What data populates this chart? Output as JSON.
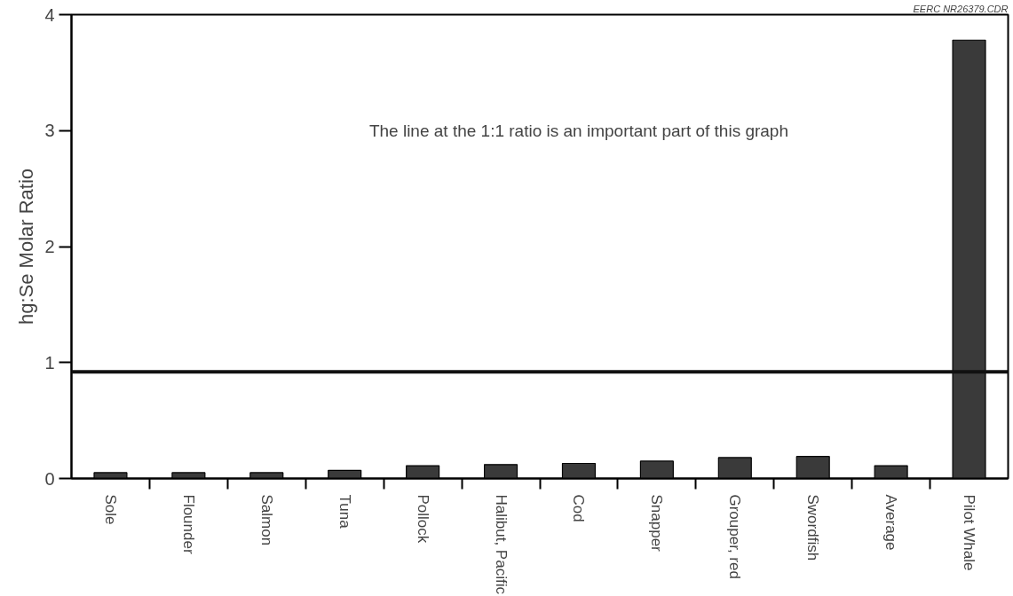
{
  "chart_data": {
    "type": "bar",
    "ylabel": "hg:Se Molar Ratio",
    "categories": [
      "Sole",
      "Flounder",
      "Salmon",
      "Tuna",
      "Pollock",
      "Halibut, Pacific",
      "Cod",
      "Snapper",
      "Grouper, red",
      "Swordfish",
      "Average",
      "Pilot Whale"
    ],
    "values": [
      0.05,
      0.05,
      0.05,
      0.07,
      0.11,
      0.12,
      0.13,
      0.15,
      0.18,
      0.19,
      0.11,
      3.78
    ],
    "color": "#3a3a3a",
    "ylim": [
      0,
      4
    ],
    "yticks": [
      0,
      1,
      2,
      3,
      4
    ],
    "grid": false,
    "ref_lines": [
      {
        "axis": "y",
        "value": 0.92,
        "color": "#111111"
      }
    ],
    "annotations": [
      "The line at the 1:1 ratio is an important part of this graph",
      "EERC NR26379.CDR"
    ]
  }
}
